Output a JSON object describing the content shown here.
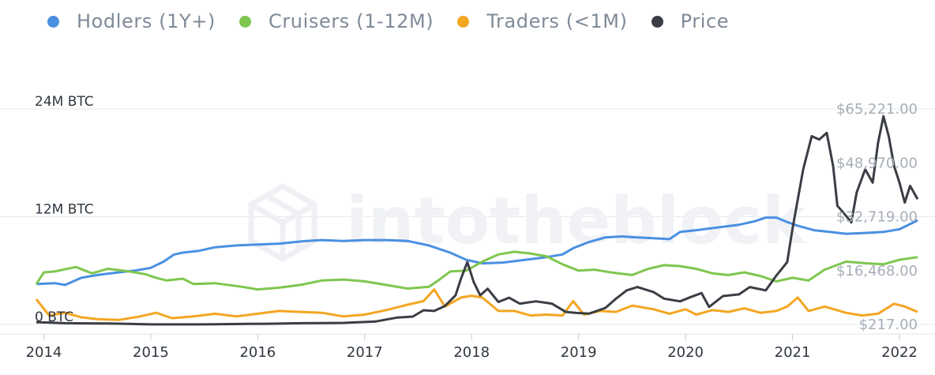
{
  "legend": [
    {
      "label": "Hodlers (1Y+)",
      "color": "#4a90e2"
    },
    {
      "label": "Cruisers (1-12M)",
      "color": "#7fc64f"
    },
    {
      "label": "Traders (<1M)",
      "color": "#f4a622"
    },
    {
      "label": "Price",
      "color": "#3a3e44"
    }
  ],
  "watermark": "intotheblock",
  "chart_data": {
    "type": "line",
    "x_ticks": [
      "2014",
      "2015",
      "2016",
      "2017",
      "2018",
      "2019",
      "2020",
      "2021",
      "2022"
    ],
    "x_range": [
      2013.93,
      2022.17
    ],
    "y_left": {
      "ticks": [
        "0 BTC",
        "12M BTC",
        "24M BTC"
      ],
      "values": [
        0,
        12,
        24
      ],
      "unit": "M BTC"
    },
    "y_right": {
      "ticks": [
        "$217.00",
        "$16,468.00",
        "$32,719.00",
        "$48,970.00",
        "$65,221.00"
      ],
      "values": [
        217,
        16468,
        32719,
        48970,
        65221
      ]
    },
    "grid": true,
    "legend_position": "top-left",
    "series": [
      {
        "name": "Hodlers (1Y+)",
        "axis": "left",
        "color": "#4a90e2",
        "points": [
          [
            2013.93,
            4.5
          ],
          [
            2014.1,
            4.6
          ],
          [
            2014.2,
            4.4
          ],
          [
            2014.35,
            5.2
          ],
          [
            2014.5,
            5.5
          ],
          [
            2014.7,
            5.8
          ],
          [
            2014.85,
            6.0
          ],
          [
            2015.0,
            6.3
          ],
          [
            2015.12,
            7.0
          ],
          [
            2015.22,
            7.8
          ],
          [
            2015.3,
            8.0
          ],
          [
            2015.45,
            8.2
          ],
          [
            2015.6,
            8.6
          ],
          [
            2015.8,
            8.8
          ],
          [
            2016.0,
            8.9
          ],
          [
            2016.2,
            9.0
          ],
          [
            2016.45,
            9.3
          ],
          [
            2016.6,
            9.4
          ],
          [
            2016.8,
            9.3
          ],
          [
            2017.0,
            9.4
          ],
          [
            2017.2,
            9.4
          ],
          [
            2017.4,
            9.3
          ],
          [
            2017.6,
            8.8
          ],
          [
            2017.8,
            8.0
          ],
          [
            2017.95,
            7.2
          ],
          [
            2018.1,
            6.8
          ],
          [
            2018.3,
            6.9
          ],
          [
            2018.5,
            7.2
          ],
          [
            2018.7,
            7.5
          ],
          [
            2018.85,
            7.8
          ],
          [
            2018.95,
            8.5
          ],
          [
            2019.1,
            9.2
          ],
          [
            2019.25,
            9.7
          ],
          [
            2019.4,
            9.8
          ],
          [
            2019.55,
            9.7
          ],
          [
            2019.7,
            9.6
          ],
          [
            2019.85,
            9.5
          ],
          [
            2019.95,
            10.3
          ],
          [
            2020.1,
            10.5
          ],
          [
            2020.3,
            10.8
          ],
          [
            2020.5,
            11.1
          ],
          [
            2020.65,
            11.5
          ],
          [
            2020.75,
            11.9
          ],
          [
            2020.85,
            11.9
          ],
          [
            2020.95,
            11.4
          ],
          [
            2021.05,
            11.0
          ],
          [
            2021.2,
            10.5
          ],
          [
            2021.35,
            10.3
          ],
          [
            2021.5,
            10.1
          ],
          [
            2021.7,
            10.2
          ],
          [
            2021.85,
            10.3
          ],
          [
            2022.0,
            10.6
          ],
          [
            2022.17,
            11.6
          ]
        ]
      },
      {
        "name": "Cruisers (1-12M)",
        "axis": "left",
        "color": "#7fc64f",
        "points": [
          [
            2013.93,
            4.5
          ],
          [
            2014.0,
            5.8
          ],
          [
            2014.1,
            5.9
          ],
          [
            2014.3,
            6.4
          ],
          [
            2014.45,
            5.7
          ],
          [
            2014.6,
            6.2
          ],
          [
            2014.8,
            5.9
          ],
          [
            2014.95,
            5.6
          ],
          [
            2015.05,
            5.2
          ],
          [
            2015.15,
            4.9
          ],
          [
            2015.3,
            5.1
          ],
          [
            2015.4,
            4.5
          ],
          [
            2015.6,
            4.6
          ],
          [
            2015.85,
            4.2
          ],
          [
            2016.0,
            3.9
          ],
          [
            2016.2,
            4.1
          ],
          [
            2016.4,
            4.4
          ],
          [
            2016.6,
            4.9
          ],
          [
            2016.8,
            5.0
          ],
          [
            2017.0,
            4.8
          ],
          [
            2017.2,
            4.4
          ],
          [
            2017.4,
            4.0
          ],
          [
            2017.6,
            4.2
          ],
          [
            2017.7,
            5.0
          ],
          [
            2017.8,
            5.9
          ],
          [
            2017.95,
            6.0
          ],
          [
            2018.1,
            7.0
          ],
          [
            2018.25,
            7.8
          ],
          [
            2018.4,
            8.1
          ],
          [
            2018.55,
            7.9
          ],
          [
            2018.7,
            7.6
          ],
          [
            2018.85,
            6.7
          ],
          [
            2019.0,
            6.0
          ],
          [
            2019.15,
            6.1
          ],
          [
            2019.3,
            5.8
          ],
          [
            2019.5,
            5.5
          ],
          [
            2019.65,
            6.2
          ],
          [
            2019.8,
            6.6
          ],
          [
            2019.95,
            6.5
          ],
          [
            2020.1,
            6.2
          ],
          [
            2020.25,
            5.7
          ],
          [
            2020.4,
            5.5
          ],
          [
            2020.55,
            5.8
          ],
          [
            2020.7,
            5.4
          ],
          [
            2020.85,
            4.8
          ],
          [
            2021.0,
            5.2
          ],
          [
            2021.15,
            4.9
          ],
          [
            2021.3,
            6.1
          ],
          [
            2021.5,
            7.0
          ],
          [
            2021.7,
            6.8
          ],
          [
            2021.85,
            6.7
          ],
          [
            2022.0,
            7.2
          ],
          [
            2022.17,
            7.5
          ]
        ]
      },
      {
        "name": "Traders (<1M)",
        "axis": "left",
        "color": "#f4a622",
        "points": [
          [
            2013.93,
            2.8
          ],
          [
            2014.05,
            1.0
          ],
          [
            2014.2,
            1.3
          ],
          [
            2014.35,
            0.8
          ],
          [
            2014.5,
            0.6
          ],
          [
            2014.7,
            0.5
          ],
          [
            2014.9,
            0.9
          ],
          [
            2015.05,
            1.3
          ],
          [
            2015.2,
            0.7
          ],
          [
            2015.4,
            0.9
          ],
          [
            2015.6,
            1.2
          ],
          [
            2015.8,
            0.9
          ],
          [
            2016.0,
            1.2
          ],
          [
            2016.2,
            1.5
          ],
          [
            2016.4,
            1.4
          ],
          [
            2016.6,
            1.3
          ],
          [
            2016.8,
            0.9
          ],
          [
            2017.0,
            1.1
          ],
          [
            2017.2,
            1.6
          ],
          [
            2017.4,
            2.2
          ],
          [
            2017.55,
            2.6
          ],
          [
            2017.65,
            3.9
          ],
          [
            2017.75,
            2.0
          ],
          [
            2017.9,
            3.0
          ],
          [
            2018.0,
            3.2
          ],
          [
            2018.1,
            3.0
          ],
          [
            2018.25,
            1.5
          ],
          [
            2018.4,
            1.5
          ],
          [
            2018.55,
            1.0
          ],
          [
            2018.7,
            1.1
          ],
          [
            2018.85,
            1.0
          ],
          [
            2018.95,
            2.6
          ],
          [
            2019.05,
            1.1
          ],
          [
            2019.2,
            1.5
          ],
          [
            2019.35,
            1.4
          ],
          [
            2019.5,
            2.1
          ],
          [
            2019.7,
            1.7
          ],
          [
            2019.85,
            1.2
          ],
          [
            2020.0,
            1.7
          ],
          [
            2020.1,
            1.1
          ],
          [
            2020.25,
            1.6
          ],
          [
            2020.4,
            1.4
          ],
          [
            2020.55,
            1.8
          ],
          [
            2020.7,
            1.3
          ],
          [
            2020.85,
            1.5
          ],
          [
            2020.95,
            2.0
          ],
          [
            2021.05,
            3.0
          ],
          [
            2021.15,
            1.5
          ],
          [
            2021.3,
            2.0
          ],
          [
            2021.5,
            1.3
          ],
          [
            2021.65,
            1.0
          ],
          [
            2021.8,
            1.2
          ],
          [
            2021.95,
            2.3
          ],
          [
            2022.05,
            2.0
          ],
          [
            2022.17,
            1.4
          ]
        ]
      },
      {
        "name": "Price",
        "axis": "right",
        "color": "#3a3e44",
        "points": [
          [
            2013.93,
            900
          ],
          [
            2014.05,
            800
          ],
          [
            2014.2,
            600
          ],
          [
            2014.4,
            550
          ],
          [
            2014.6,
            500
          ],
          [
            2014.8,
            380
          ],
          [
            2015.0,
            250
          ],
          [
            2015.3,
            240
          ],
          [
            2015.6,
            270
          ],
          [
            2015.9,
            390
          ],
          [
            2016.1,
            420
          ],
          [
            2016.4,
            600
          ],
          [
            2016.6,
            650
          ],
          [
            2016.8,
            700
          ],
          [
            2016.95,
            900
          ],
          [
            2017.1,
            1100
          ],
          [
            2017.3,
            2300
          ],
          [
            2017.45,
            2600
          ],
          [
            2017.55,
            4500
          ],
          [
            2017.65,
            4300
          ],
          [
            2017.75,
            5800
          ],
          [
            2017.85,
            9000
          ],
          [
            2017.9,
            14000
          ],
          [
            2017.96,
            19000
          ],
          [
            2018.02,
            13000
          ],
          [
            2018.08,
            9000
          ],
          [
            2018.15,
            11000
          ],
          [
            2018.25,
            7000
          ],
          [
            2018.35,
            8300
          ],
          [
            2018.45,
            6500
          ],
          [
            2018.6,
            7200
          ],
          [
            2018.75,
            6500
          ],
          [
            2018.88,
            4000
          ],
          [
            2018.98,
            3700
          ],
          [
            2019.1,
            3500
          ],
          [
            2019.25,
            5200
          ],
          [
            2019.35,
            8000
          ],
          [
            2019.45,
            10500
          ],
          [
            2019.55,
            11500
          ],
          [
            2019.7,
            10000
          ],
          [
            2019.8,
            8000
          ],
          [
            2019.95,
            7200
          ],
          [
            2020.05,
            8500
          ],
          [
            2020.15,
            9700
          ],
          [
            2020.22,
            5500
          ],
          [
            2020.35,
            8800
          ],
          [
            2020.5,
            9300
          ],
          [
            2020.6,
            11500
          ],
          [
            2020.75,
            10500
          ],
          [
            2020.85,
            15000
          ],
          [
            2020.95,
            19000
          ],
          [
            2021.0,
            29000
          ],
          [
            2021.05,
            38000
          ],
          [
            2021.1,
            47000
          ],
          [
            2021.18,
            57000
          ],
          [
            2021.25,
            56000
          ],
          [
            2021.32,
            58000
          ],
          [
            2021.38,
            48000
          ],
          [
            2021.42,
            36000
          ],
          [
            2021.5,
            33000
          ],
          [
            2021.55,
            31000
          ],
          [
            2021.6,
            40000
          ],
          [
            2021.68,
            47000
          ],
          [
            2021.75,
            43000
          ],
          [
            2021.8,
            55000
          ],
          [
            2021.85,
            63000
          ],
          [
            2021.9,
            57000
          ],
          [
            2021.95,
            48000
          ],
          [
            2022.0,
            43000
          ],
          [
            2022.05,
            37000
          ],
          [
            2022.1,
            42000
          ],
          [
            2022.17,
            38000
          ]
        ]
      }
    ]
  }
}
